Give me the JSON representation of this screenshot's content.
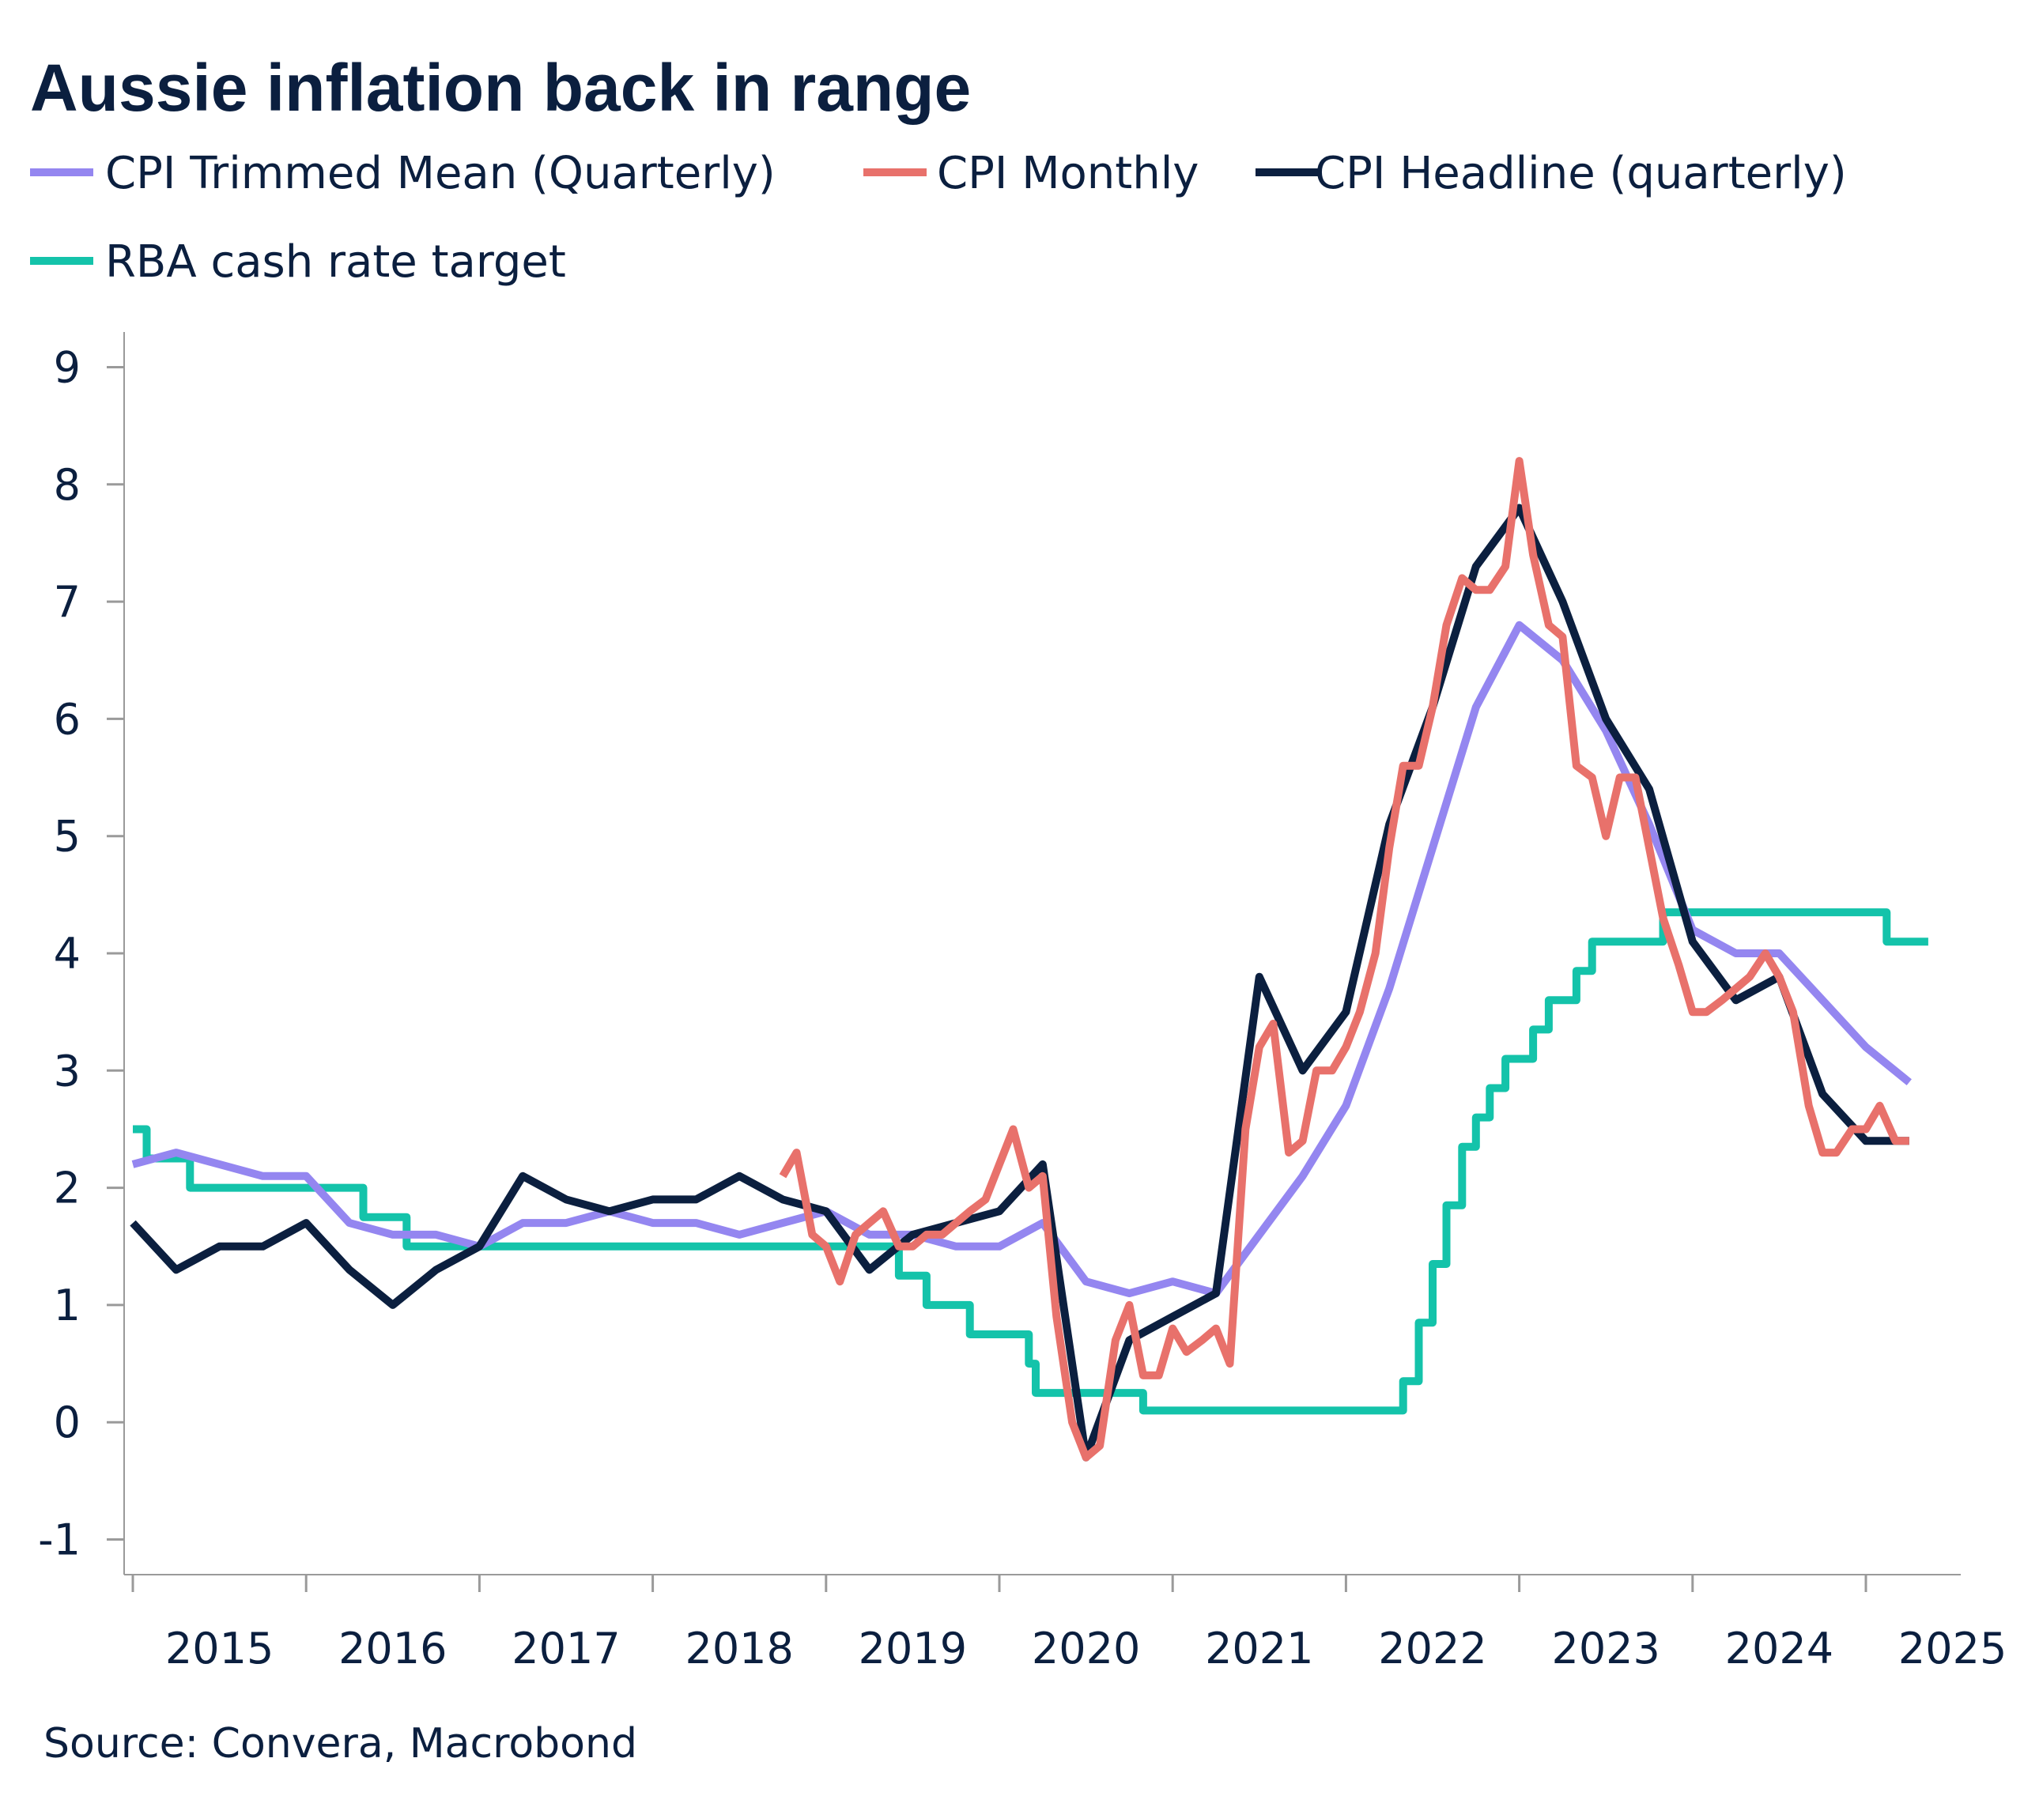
{
  "chart_data": {
    "type": "line",
    "title": "Aussie inflation back in range",
    "source": "Source: Convera, Macrobond",
    "xlabel": "",
    "ylabel": "",
    "xlim": [
      2015.0,
      2025.6
    ],
    "ylim": [
      -1.3,
      9.3
    ],
    "yticks": [
      "-1",
      "0",
      "1",
      "2",
      "3",
      "4",
      "5",
      "6",
      "7",
      "8",
      "9"
    ],
    "xtick_labels": [
      "2015",
      "2016",
      "2017",
      "2018",
      "2019",
      "2020",
      "2021",
      "2022",
      "2023",
      "2024",
      "2025"
    ],
    "grid": false,
    "legend_position": "top-left",
    "colors": {
      "trimmed_mean": "#9486f0",
      "monthly": "#e8716b",
      "headline": "#0b1f3f",
      "cash_rate": "#14c3aa",
      "axis": "#9a9a9a",
      "text": "#0b1f3f"
    },
    "series": [
      {
        "name": "CPI Trimmed Mean (Quarterly)",
        "key": "trimmed_mean",
        "points": [
          [
            2015.0,
            2.2
          ],
          [
            2015.25,
            2.3
          ],
          [
            2015.5,
            2.2
          ],
          [
            2015.75,
            2.1
          ],
          [
            2016.0,
            2.1
          ],
          [
            2016.25,
            1.7
          ],
          [
            2016.5,
            1.6
          ],
          [
            2016.75,
            1.6
          ],
          [
            2017.0,
            1.5
          ],
          [
            2017.25,
            1.7
          ],
          [
            2017.5,
            1.7
          ],
          [
            2017.75,
            1.8
          ],
          [
            2018.0,
            1.7
          ],
          [
            2018.25,
            1.7
          ],
          [
            2018.5,
            1.6
          ],
          [
            2018.75,
            1.7
          ],
          [
            2019.0,
            1.8
          ],
          [
            2019.25,
            1.6
          ],
          [
            2019.5,
            1.6
          ],
          [
            2019.75,
            1.5
          ],
          [
            2020.0,
            1.5
          ],
          [
            2020.25,
            1.7
          ],
          [
            2020.5,
            1.2
          ],
          [
            2020.75,
            1.1
          ],
          [
            2021.0,
            1.2
          ],
          [
            2021.25,
            1.1
          ],
          [
            2021.5,
            1.6
          ],
          [
            2021.75,
            2.1
          ],
          [
            2022.0,
            2.7
          ],
          [
            2022.25,
            3.7
          ],
          [
            2022.5,
            4.9
          ],
          [
            2022.75,
            6.1
          ],
          [
            2023.0,
            6.8
          ],
          [
            2023.25,
            6.5
          ],
          [
            2023.5,
            5.9
          ],
          [
            2023.75,
            5.1
          ],
          [
            2024.0,
            4.2
          ],
          [
            2024.25,
            4.0
          ],
          [
            2024.5,
            4.0
          ],
          [
            2024.75,
            3.6
          ],
          [
            2025.0,
            3.2
          ],
          [
            2025.25,
            2.9
          ]
        ]
      },
      {
        "name": "CPI Monthly",
        "key": "monthly",
        "points": [
          [
            2018.75,
            2.1
          ],
          [
            2018.83,
            2.3
          ],
          [
            2018.92,
            1.6
          ],
          [
            2019.0,
            1.5
          ],
          [
            2019.08,
            1.2
          ],
          [
            2019.17,
            1.6
          ],
          [
            2019.25,
            1.7
          ],
          [
            2019.33,
            1.8
          ],
          [
            2019.42,
            1.5
          ],
          [
            2019.5,
            1.5
          ],
          [
            2019.58,
            1.6
          ],
          [
            2019.67,
            1.6
          ],
          [
            2019.75,
            1.7
          ],
          [
            2019.83,
            1.8
          ],
          [
            2019.92,
            1.9
          ],
          [
            2020.0,
            2.2
          ],
          [
            2020.08,
            2.5
          ],
          [
            2020.17,
            2.0
          ],
          [
            2020.25,
            2.1
          ],
          [
            2020.33,
            0.9
          ],
          [
            2020.42,
            0.0
          ],
          [
            2020.5,
            -0.3
          ],
          [
            2020.58,
            -0.2
          ],
          [
            2020.67,
            0.7
          ],
          [
            2020.75,
            1.0
          ],
          [
            2020.83,
            0.4
          ],
          [
            2020.92,
            0.4
          ],
          [
            2021.0,
            0.8
          ],
          [
            2021.08,
            0.6
          ],
          [
            2021.17,
            0.7
          ],
          [
            2021.25,
            0.8
          ],
          [
            2021.33,
            0.5
          ],
          [
            2021.42,
            2.5
          ],
          [
            2021.5,
            3.2
          ],
          [
            2021.58,
            3.4
          ],
          [
            2021.67,
            2.3
          ],
          [
            2021.75,
            2.4
          ],
          [
            2021.83,
            3.0
          ],
          [
            2021.92,
            3.0
          ],
          [
            2022.0,
            3.2
          ],
          [
            2022.08,
            3.5
          ],
          [
            2022.17,
            4.0
          ],
          [
            2022.25,
            4.9
          ],
          [
            2022.33,
            5.6
          ],
          [
            2022.42,
            5.6
          ],
          [
            2022.5,
            6.1
          ],
          [
            2022.58,
            6.8
          ],
          [
            2022.67,
            7.2
          ],
          [
            2022.75,
            7.1
          ],
          [
            2022.83,
            7.1
          ],
          [
            2022.92,
            7.3
          ],
          [
            2023.0,
            8.2
          ],
          [
            2023.08,
            7.4
          ],
          [
            2023.17,
            6.8
          ],
          [
            2023.25,
            6.7
          ],
          [
            2023.33,
            5.6
          ],
          [
            2023.42,
            5.5
          ],
          [
            2023.5,
            5.0
          ],
          [
            2023.58,
            5.5
          ],
          [
            2023.67,
            5.5
          ],
          [
            2023.75,
            4.9
          ],
          [
            2023.83,
            4.3
          ],
          [
            2023.92,
            3.9
          ],
          [
            2024.0,
            3.5
          ],
          [
            2024.08,
            3.5
          ],
          [
            2024.17,
            3.6
          ],
          [
            2024.25,
            3.7
          ],
          [
            2024.33,
            3.8
          ],
          [
            2024.42,
            4.0
          ],
          [
            2024.5,
            3.8
          ],
          [
            2024.58,
            3.5
          ],
          [
            2024.67,
            2.7
          ],
          [
            2024.75,
            2.3
          ],
          [
            2024.83,
            2.3
          ],
          [
            2024.92,
            2.5
          ],
          [
            2025.0,
            2.5
          ],
          [
            2025.08,
            2.7
          ],
          [
            2025.17,
            2.4
          ],
          [
            2025.25,
            2.4
          ]
        ]
      },
      {
        "name": "CPI Headline (quarterly)",
        "key": "headline",
        "points": [
          [
            2015.0,
            1.7
          ],
          [
            2015.25,
            1.3
          ],
          [
            2015.5,
            1.5
          ],
          [
            2015.75,
            1.5
          ],
          [
            2016.0,
            1.7
          ],
          [
            2016.25,
            1.3
          ],
          [
            2016.5,
            1.0
          ],
          [
            2016.75,
            1.3
          ],
          [
            2017.0,
            1.5
          ],
          [
            2017.25,
            2.1
          ],
          [
            2017.5,
            1.9
          ],
          [
            2017.75,
            1.8
          ],
          [
            2018.0,
            1.9
          ],
          [
            2018.25,
            1.9
          ],
          [
            2018.5,
            2.1
          ],
          [
            2018.75,
            1.9
          ],
          [
            2019.0,
            1.8
          ],
          [
            2019.25,
            1.3
          ],
          [
            2019.5,
            1.6
          ],
          [
            2019.75,
            1.7
          ],
          [
            2020.0,
            1.8
          ],
          [
            2020.25,
            2.2
          ],
          [
            2020.5,
            -0.3
          ],
          [
            2020.75,
            0.7
          ],
          [
            2021.0,
            0.9
          ],
          [
            2021.25,
            1.1
          ],
          [
            2021.5,
            3.8
          ],
          [
            2021.75,
            3.0
          ],
          [
            2022.0,
            3.5
          ],
          [
            2022.25,
            5.1
          ],
          [
            2022.5,
            6.1
          ],
          [
            2022.75,
            7.3
          ],
          [
            2023.0,
            7.8
          ],
          [
            2023.25,
            7.0
          ],
          [
            2023.5,
            6.0
          ],
          [
            2023.75,
            5.4
          ],
          [
            2024.0,
            4.1
          ],
          [
            2024.25,
            3.6
          ],
          [
            2024.5,
            3.8
          ],
          [
            2024.75,
            2.8
          ],
          [
            2025.0,
            2.4
          ],
          [
            2025.25,
            2.4
          ]
        ]
      },
      {
        "name": "RBA cash rate target",
        "key": "cash_rate",
        "step": true,
        "points": [
          [
            2015.0,
            2.5
          ],
          [
            2015.08,
            2.25
          ],
          [
            2015.33,
            2.0
          ],
          [
            2016.33,
            1.75
          ],
          [
            2016.58,
            1.5
          ],
          [
            2019.42,
            1.25
          ],
          [
            2019.58,
            1.0
          ],
          [
            2019.83,
            0.75
          ],
          [
            2020.17,
            0.5
          ],
          [
            2020.21,
            0.25
          ],
          [
            2020.83,
            0.1
          ],
          [
            2022.33,
            0.35
          ],
          [
            2022.42,
            0.85
          ],
          [
            2022.5,
            1.35
          ],
          [
            2022.58,
            1.85
          ],
          [
            2022.67,
            2.35
          ],
          [
            2022.75,
            2.6
          ],
          [
            2022.83,
            2.85
          ],
          [
            2022.92,
            3.1
          ],
          [
            2023.08,
            3.35
          ],
          [
            2023.17,
            3.6
          ],
          [
            2023.33,
            3.85
          ],
          [
            2023.42,
            4.1
          ],
          [
            2023.83,
            4.35
          ],
          [
            2025.12,
            4.1
          ],
          [
            2025.36,
            4.1
          ]
        ]
      }
    ]
  }
}
